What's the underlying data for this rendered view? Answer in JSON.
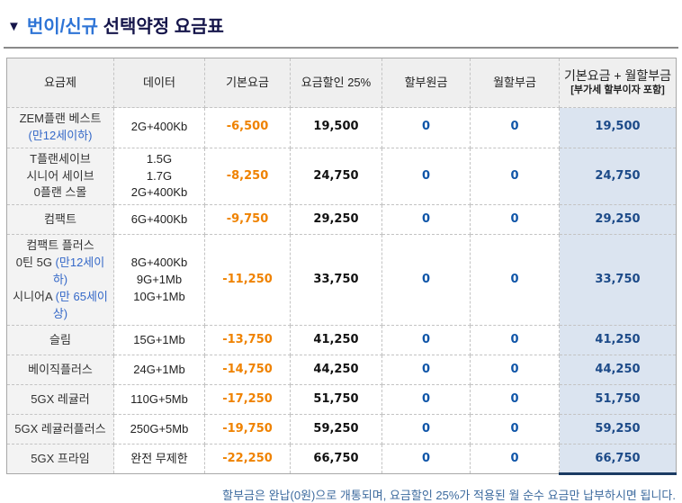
{
  "title": {
    "arrow": "▼",
    "highlight": "번이/신규",
    "rest": " 선택약정 요금표"
  },
  "table": {
    "headers": [
      "요금제",
      "데이터",
      "기본요금",
      "요금할인 25%",
      "할부원금",
      "월할부금"
    ],
    "last_header": {
      "line1": "기본요금 + 월할부금",
      "line2": "[부가세 할부이자 포함]"
    },
    "rows": [
      {
        "plan": [
          [
            {
              "t": "ZEM플랜 베스트"
            }
          ],
          [
            {
              "t": "(만12세이하)",
              "blue": true
            }
          ]
        ],
        "data": [
          "2G+400Kb"
        ],
        "base_fee": "-6,500",
        "discounted": "19,500",
        "principal": "0",
        "monthly": "0",
        "total": "19,500"
      },
      {
        "plan": [
          [
            {
              "t": "T플랜세이브"
            }
          ],
          [
            {
              "t": "시니어 세이브"
            }
          ],
          [
            {
              "t": "0플랜 스몰"
            }
          ]
        ],
        "data": [
          "1.5G",
          "1.7G",
          "2G+400Kb"
        ],
        "base_fee": "-8,250",
        "discounted": "24,750",
        "principal": "0",
        "monthly": "0",
        "total": "24,750"
      },
      {
        "plan": [
          [
            {
              "t": "컴팩트"
            }
          ]
        ],
        "data": [
          "6G+400Kb"
        ],
        "base_fee": "-9,750",
        "discounted": "29,250",
        "principal": "0",
        "monthly": "0",
        "total": "29,250"
      },
      {
        "plan": [
          [
            {
              "t": "컴팩트 플러스"
            }
          ],
          [
            {
              "t": "0틴 5G "
            },
            {
              "t": "(만12세이하)",
              "blue": true
            }
          ],
          [
            {
              "t": "시니어A "
            },
            {
              "t": "(만 65세이상)",
              "blue": true
            }
          ]
        ],
        "data": [
          "8G+400Kb",
          "9G+1Mb",
          "10G+1Mb"
        ],
        "base_fee": "-11,250",
        "discounted": "33,750",
        "principal": "0",
        "monthly": "0",
        "total": "33,750"
      },
      {
        "plan": [
          [
            {
              "t": "슬림"
            }
          ]
        ],
        "data": [
          "15G+1Mb"
        ],
        "base_fee": "-13,750",
        "discounted": "41,250",
        "principal": "0",
        "monthly": "0",
        "total": "41,250"
      },
      {
        "plan": [
          [
            {
              "t": "베이직플러스"
            }
          ]
        ],
        "data": [
          "24G+1Mb"
        ],
        "base_fee": "-14,750",
        "discounted": "44,250",
        "principal": "0",
        "monthly": "0",
        "total": "44,250"
      },
      {
        "plan": [
          [
            {
              "t": "5GX 레귤러"
            }
          ]
        ],
        "data": [
          "110G+5Mb"
        ],
        "base_fee": "-17,250",
        "discounted": "51,750",
        "principal": "0",
        "monthly": "0",
        "total": "51,750"
      },
      {
        "plan": [
          [
            {
              "t": "5GX 레귤러플러스"
            }
          ]
        ],
        "data": [
          "250G+5Mb"
        ],
        "base_fee": "-19,750",
        "discounted": "59,250",
        "principal": "0",
        "monthly": "0",
        "total": "59,250"
      },
      {
        "plan": [
          [
            {
              "t": "5GX 프라임"
            }
          ]
        ],
        "data": [
          "완전 무제한"
        ],
        "base_fee": "-22,250",
        "discounted": "66,750",
        "principal": "0",
        "monthly": "0",
        "total": "66,750"
      }
    ]
  },
  "footer": {
    "note": "할부금은 완납(0원)으로 개통되며, 요금할인 25%가 적용된 월 순수 요금만 납부하시면 됩니다."
  },
  "colors": {
    "title_blue": "#2e74d6",
    "title_navy": "#15154a",
    "accent_orange": "#ef8200",
    "plan_note_blue": "#3468c8",
    "zero_blue": "#0f55a8",
    "total_navy_text": "#1c4a88",
    "total_header_fill": "#3b69a5",
    "total_cell_fill": "#dbe4f0",
    "total_border_navy": "#1b3b63",
    "header_fill": "#efefef",
    "plan_cell_fill": "#f3f3f3",
    "footer_blue": "#3c6a9e"
  }
}
